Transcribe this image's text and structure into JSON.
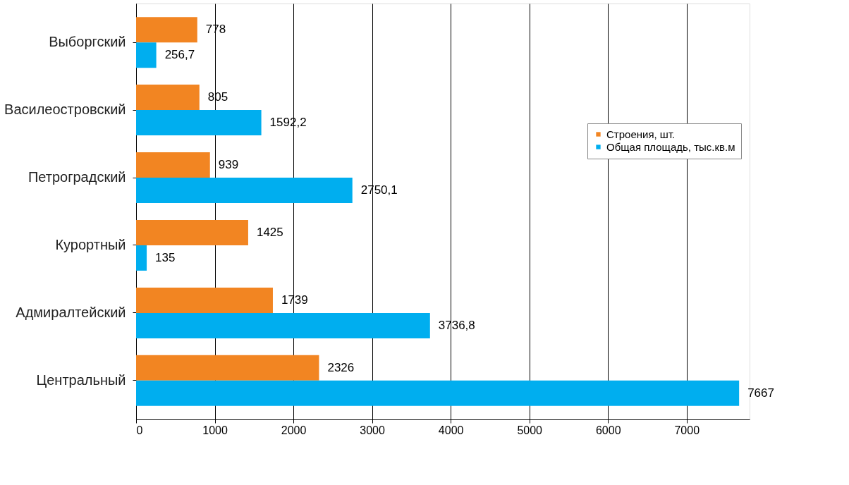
{
  "chart_data": {
    "type": "bar",
    "orientation": "horizontal",
    "categories": [
      "Выборгский",
      "Василеостровский",
      "Петроградский",
      "Курортный",
      "Адмиралтейский",
      "Центральный"
    ],
    "series": [
      {
        "name": "Строения, шт.",
        "color": "#f28522",
        "values": [
          778,
          805,
          939,
          1425,
          1739,
          2326
        ],
        "value_labels": [
          "778",
          "805",
          "939",
          "1425",
          "1739",
          "2326"
        ]
      },
      {
        "name": "Общая площадь, тыс.кв.м",
        "color": "#00aeef",
        "values": [
          256.7,
          1592.2,
          2750.1,
          135,
          3736.8,
          7667
        ],
        "value_labels": [
          "256,7",
          "1592,2",
          "2750,1",
          "135",
          "3736,8",
          "7667"
        ]
      }
    ],
    "xlim": [
      0,
      7800
    ],
    "xticks": [
      0,
      1000,
      2000,
      3000,
      4000,
      5000,
      6000,
      7000
    ],
    "grid": "x",
    "legend": "right"
  }
}
